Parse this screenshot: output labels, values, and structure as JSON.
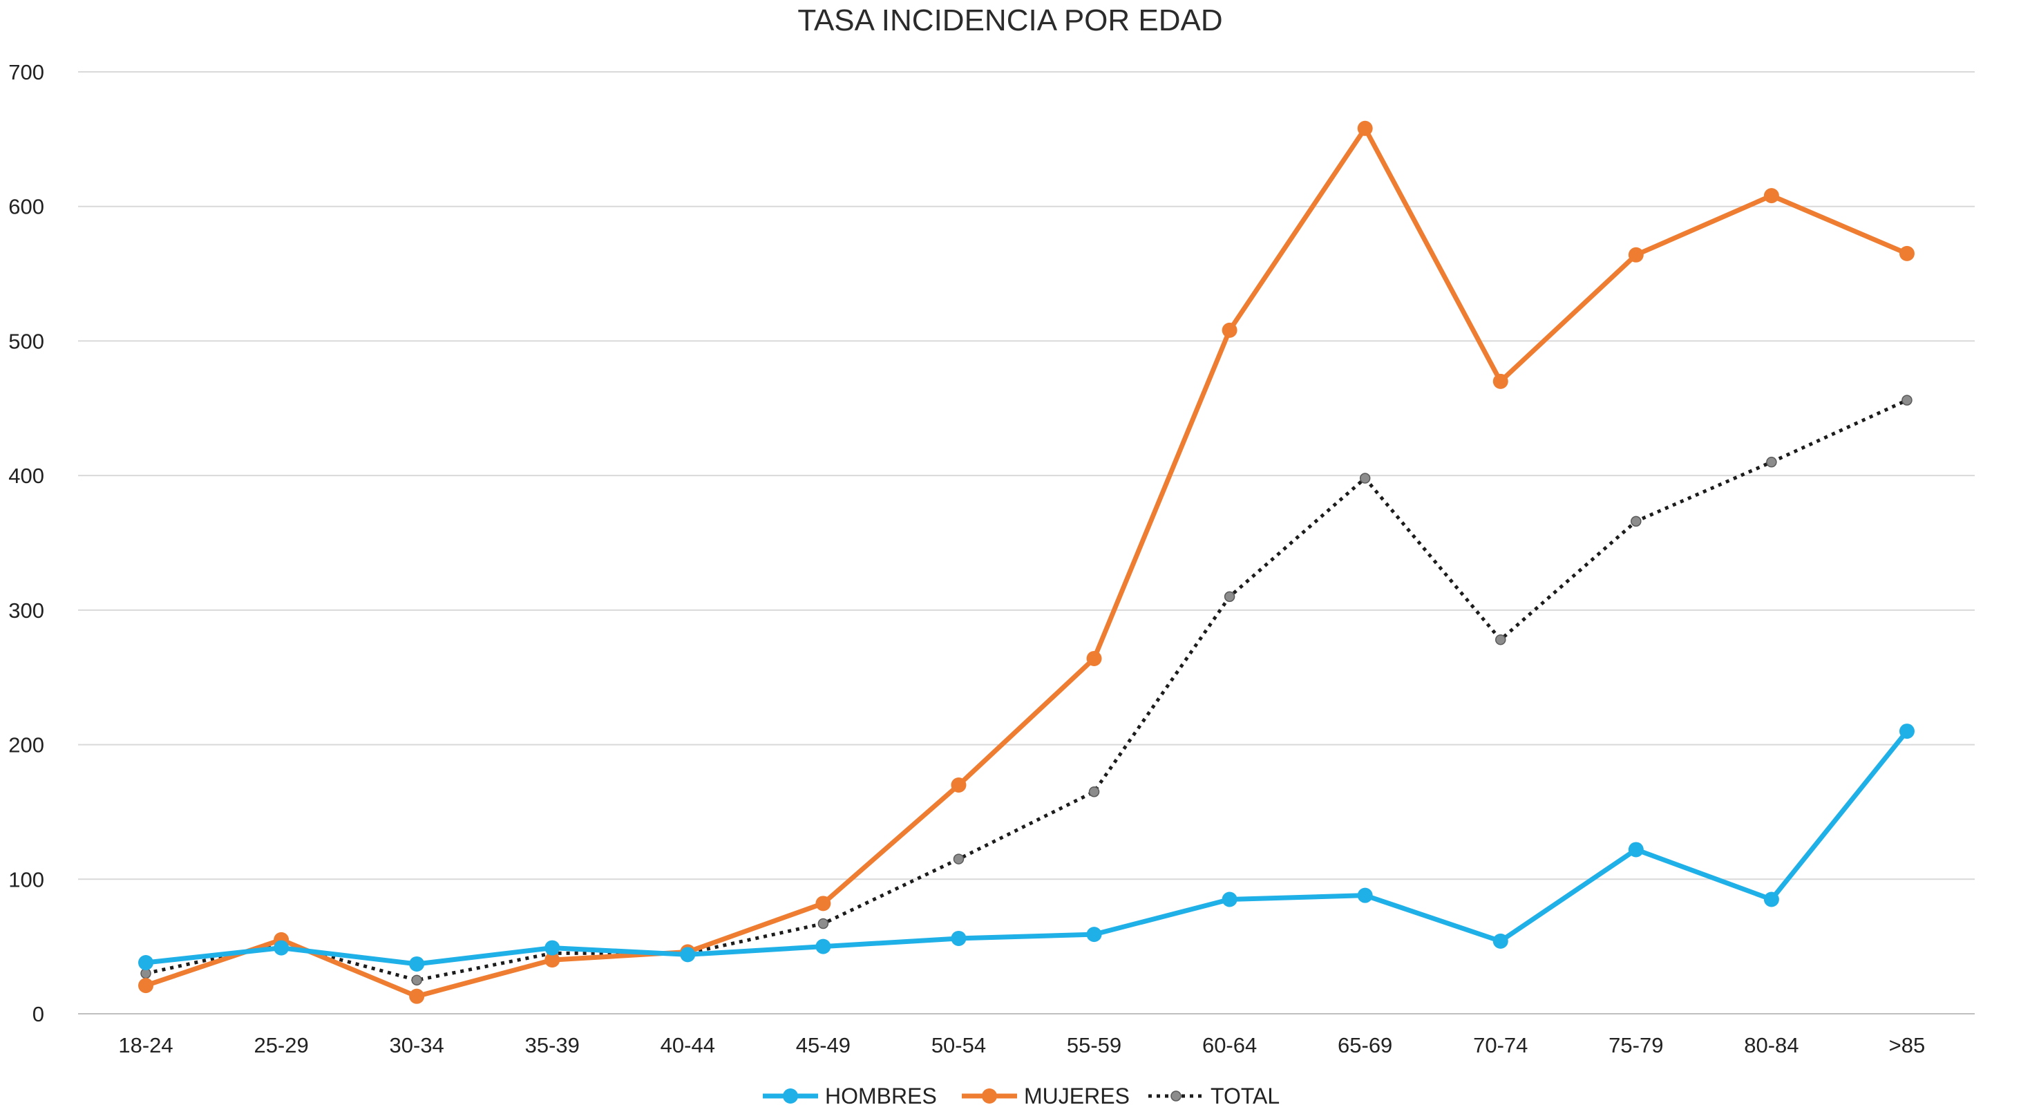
{
  "chart_data": {
    "type": "line",
    "title": "TASA INCIDENCIA POR EDAD",
    "xlabel": "",
    "ylabel": "",
    "ylim": [
      0,
      700
    ],
    "yticks": [
      0,
      100,
      200,
      300,
      400,
      500,
      600,
      700
    ],
    "ytick_labels": [
      "0",
      "100",
      "200",
      "300",
      "400",
      "500",
      "600",
      "700"
    ],
    "grid": true,
    "legend_position": "bottom",
    "categories": [
      "18-24",
      "25-29",
      "30-34",
      "35-39",
      "40-44",
      "45-49",
      "50-54",
      "55-59",
      "60-64",
      "65-69",
      "70-74",
      "75-79",
      "80-84",
      ">85"
    ],
    "series": [
      {
        "name": "HOMBRES",
        "color": "#1fb0e8",
        "line_style": "solid",
        "marker": "circle",
        "values": [
          38,
          49,
          37,
          49,
          44,
          50,
          56,
          59,
          85,
          88,
          54,
          122,
          85,
          210
        ]
      },
      {
        "name": "MUJERES",
        "color": "#ef7d31",
        "line_style": "solid",
        "marker": "circle",
        "values": [
          21,
          55,
          13,
          40,
          46,
          82,
          170,
          264,
          508,
          658,
          470,
          564,
          608,
          565
        ]
      },
      {
        "name": "TOTAL",
        "color": "#1c1c1c",
        "marker_color": "#8c8c8c",
        "line_style": "dotted",
        "marker": "small-circle",
        "values": [
          30,
          52,
          25,
          45,
          45,
          67,
          115,
          165,
          310,
          398,
          278,
          366,
          410,
          456
        ]
      }
    ]
  }
}
